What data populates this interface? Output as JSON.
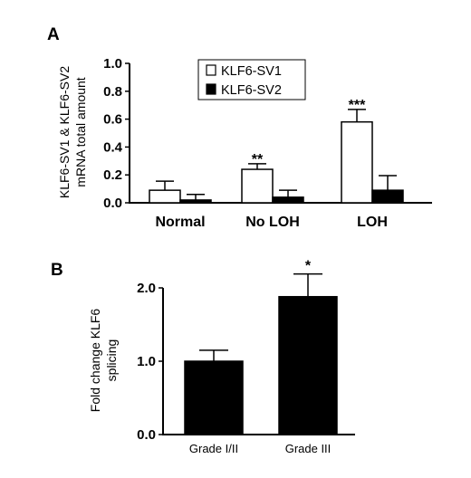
{
  "chart_data": [
    {
      "panel": "A",
      "type": "bar",
      "ylabel_lines": [
        "KLF6-SV1 & KLF6-SV2",
        "mRNA total amount"
      ],
      "categories": [
        "Normal",
        "No LOH",
        "LOH"
      ],
      "ylim": [
        0,
        1.0
      ],
      "yticks": [
        "0.0",
        "0.2",
        "0.4",
        "0.6",
        "0.8",
        "1.0"
      ],
      "legend": {
        "position": "top-center"
      },
      "series": [
        {
          "name": "KLF6-SV1",
          "color": "#ffffff",
          "values": [
            0.09,
            0.24,
            0.58
          ],
          "errors": [
            0.065,
            0.04,
            0.09
          ]
        },
        {
          "name": "KLF6-SV2",
          "color": "#000000",
          "values": [
            0.02,
            0.04,
            0.09
          ],
          "errors": [
            0.04,
            0.05,
            0.105
          ]
        }
      ],
      "significance": [
        "",
        "**",
        "***"
      ]
    },
    {
      "panel": "B",
      "type": "bar",
      "ylabel_lines": [
        "Fold change KLF6",
        "splicing"
      ],
      "categories": [
        "Grade I/II",
        "Grade III"
      ],
      "ylim": [
        0,
        2.0
      ],
      "yticks": [
        "0.0",
        "1.0",
        "2.0"
      ],
      "series": [
        {
          "color": "#000000",
          "values": [
            1.0,
            1.88
          ],
          "errors": [
            0.15,
            0.31
          ]
        }
      ],
      "significance": [
        "",
        "*"
      ]
    }
  ]
}
